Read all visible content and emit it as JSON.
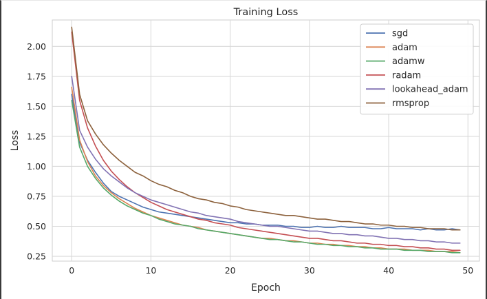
{
  "chart_data": {
    "type": "line",
    "title": "Training Loss",
    "xlabel": "Epoch",
    "ylabel": "Loss",
    "xlim": [
      -2.45,
      51.45
    ],
    "ylim": [
      0.21,
      2.22
    ],
    "xticks": [
      0,
      10,
      20,
      30,
      40,
      50
    ],
    "yticks": [
      0.25,
      0.5,
      0.75,
      1.0,
      1.25,
      1.5,
      1.75,
      2.0
    ],
    "ytick_labels": [
      "0.25",
      "0.50",
      "0.75",
      "1.00",
      "1.25",
      "1.50",
      "1.75",
      "2.00"
    ],
    "grid": true,
    "legend_position": "top-right",
    "x": [
      0,
      1,
      2,
      3,
      4,
      5,
      6,
      7,
      8,
      9,
      10,
      11,
      12,
      13,
      14,
      15,
      16,
      17,
      18,
      19,
      20,
      21,
      22,
      23,
      24,
      25,
      26,
      27,
      28,
      29,
      30,
      31,
      32,
      33,
      34,
      35,
      36,
      37,
      38,
      39,
      40,
      41,
      42,
      43,
      44,
      45,
      46,
      47,
      48,
      49
    ],
    "series": [
      {
        "name": "sgd",
        "color": "#4c72b0",
        "values": [
          1.6,
          1.2,
          1.05,
          0.95,
          0.86,
          0.79,
          0.75,
          0.72,
          0.69,
          0.66,
          0.64,
          0.62,
          0.61,
          0.6,
          0.59,
          0.58,
          0.57,
          0.56,
          0.55,
          0.54,
          0.53,
          0.53,
          0.52,
          0.52,
          0.51,
          0.51,
          0.51,
          0.5,
          0.5,
          0.49,
          0.49,
          0.5,
          0.49,
          0.49,
          0.5,
          0.49,
          0.49,
          0.49,
          0.48,
          0.48,
          0.49,
          0.48,
          0.48,
          0.48,
          0.47,
          0.48,
          0.47,
          0.47,
          0.48,
          0.47
        ]
      },
      {
        "name": "adam",
        "color": "#dd8452",
        "values": [
          1.66,
          1.22,
          1.04,
          0.92,
          0.84,
          0.78,
          0.73,
          0.69,
          0.65,
          0.62,
          0.59,
          0.57,
          0.55,
          0.53,
          0.51,
          0.5,
          0.49,
          0.47,
          0.46,
          0.45,
          0.44,
          0.43,
          0.42,
          0.41,
          0.4,
          0.4,
          0.39,
          0.38,
          0.38,
          0.37,
          0.36,
          0.36,
          0.35,
          0.35,
          0.34,
          0.34,
          0.33,
          0.33,
          0.32,
          0.32,
          0.31,
          0.31,
          0.31,
          0.3,
          0.3,
          0.3,
          0.29,
          0.29,
          0.29,
          0.28
        ]
      },
      {
        "name": "adamw",
        "color": "#55a868",
        "values": [
          1.55,
          1.16,
          1.0,
          0.9,
          0.82,
          0.76,
          0.71,
          0.67,
          0.64,
          0.61,
          0.59,
          0.56,
          0.54,
          0.52,
          0.51,
          0.5,
          0.48,
          0.47,
          0.46,
          0.45,
          0.44,
          0.43,
          0.42,
          0.41,
          0.4,
          0.39,
          0.39,
          0.38,
          0.37,
          0.37,
          0.36,
          0.35,
          0.35,
          0.34,
          0.34,
          0.33,
          0.33,
          0.32,
          0.32,
          0.31,
          0.31,
          0.31,
          0.3,
          0.3,
          0.3,
          0.29,
          0.29,
          0.29,
          0.28,
          0.28
        ]
      },
      {
        "name": "radam",
        "color": "#c44e52",
        "values": [
          2.12,
          1.55,
          1.32,
          1.17,
          1.05,
          0.96,
          0.89,
          0.83,
          0.78,
          0.74,
          0.7,
          0.67,
          0.64,
          0.62,
          0.6,
          0.58,
          0.56,
          0.55,
          0.53,
          0.52,
          0.51,
          0.49,
          0.48,
          0.47,
          0.46,
          0.45,
          0.44,
          0.43,
          0.42,
          0.41,
          0.4,
          0.4,
          0.39,
          0.38,
          0.38,
          0.37,
          0.36,
          0.36,
          0.35,
          0.35,
          0.34,
          0.34,
          0.33,
          0.33,
          0.32,
          0.32,
          0.31,
          0.31,
          0.3,
          0.3
        ]
      },
      {
        "name": "lookahead_adam",
        "color": "#8172b3",
        "values": [
          1.75,
          1.3,
          1.16,
          1.06,
          0.98,
          0.92,
          0.87,
          0.82,
          0.78,
          0.75,
          0.72,
          0.7,
          0.68,
          0.66,
          0.64,
          0.62,
          0.61,
          0.59,
          0.58,
          0.57,
          0.56,
          0.54,
          0.53,
          0.52,
          0.51,
          0.5,
          0.5,
          0.49,
          0.48,
          0.47,
          0.46,
          0.46,
          0.45,
          0.44,
          0.44,
          0.43,
          0.43,
          0.42,
          0.42,
          0.41,
          0.4,
          0.4,
          0.39,
          0.39,
          0.38,
          0.38,
          0.37,
          0.37,
          0.36,
          0.36
        ]
      },
      {
        "name": "rmsprop",
        "color": "#8c613c",
        "values": [
          2.16,
          1.6,
          1.38,
          1.27,
          1.18,
          1.11,
          1.05,
          1.0,
          0.95,
          0.92,
          0.88,
          0.85,
          0.83,
          0.8,
          0.78,
          0.75,
          0.73,
          0.72,
          0.7,
          0.69,
          0.67,
          0.66,
          0.64,
          0.63,
          0.62,
          0.61,
          0.6,
          0.59,
          0.59,
          0.58,
          0.57,
          0.56,
          0.56,
          0.55,
          0.54,
          0.54,
          0.53,
          0.52,
          0.52,
          0.51,
          0.51,
          0.5,
          0.5,
          0.49,
          0.49,
          0.48,
          0.48,
          0.48,
          0.47,
          0.47
        ]
      }
    ]
  }
}
